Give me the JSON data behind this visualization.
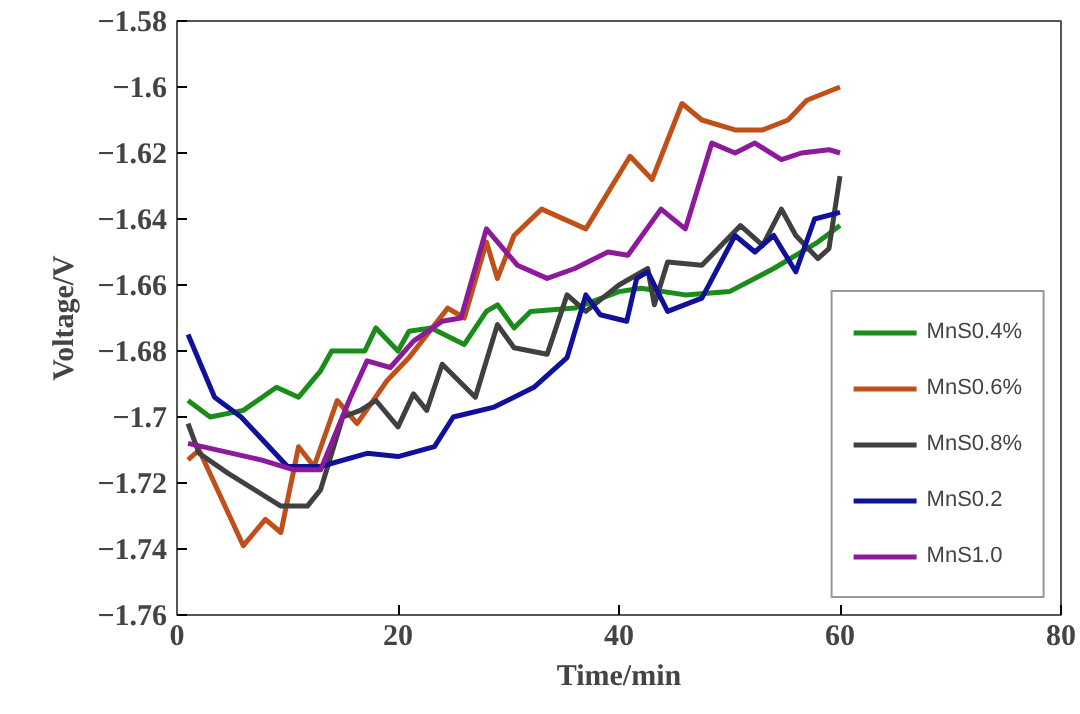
{
  "chart_data": {
    "type": "line",
    "xlabel": "Time/min",
    "ylabel": "Voltage/V",
    "xlim": [
      0,
      80
    ],
    "xticks": [
      0,
      20,
      40,
      60,
      80
    ],
    "ylim": [
      -1.76,
      -1.58
    ],
    "yticks": [
      {
        "value": -1.76,
        "label": "−1.76"
      },
      {
        "value": -1.74,
        "label": "−1.74"
      },
      {
        "value": -1.72,
        "label": "−1.72"
      },
      {
        "value": -1.7,
        "label": "−1.7"
      },
      {
        "value": -1.68,
        "label": "−1.68"
      },
      {
        "value": -1.66,
        "label": "−1.66"
      },
      {
        "value": -1.64,
        "label": "−1.64"
      },
      {
        "value": -1.62,
        "label": "−1.62"
      },
      {
        "value": -1.6,
        "label": "−1.6"
      },
      {
        "value": -1.58,
        "label": "−1.58"
      }
    ],
    "grid": false,
    "legend": "bottom right",
    "marker": "none",
    "line_style": "solid",
    "series": [
      {
        "name": "MnS0.4%",
        "color": "#1a8c1a",
        "x": [
          1,
          3,
          6,
          9,
          11,
          13,
          14,
          17,
          18,
          20,
          21,
          23,
          26,
          28,
          29,
          30.5,
          32,
          36,
          40,
          42,
          46,
          50,
          54,
          58,
          60
        ],
        "values": [
          -1.695,
          -1.7,
          -1.698,
          -1.691,
          -1.694,
          -1.686,
          -1.68,
          -1.68,
          -1.673,
          -1.68,
          -1.674,
          -1.673,
          -1.678,
          -1.668,
          -1.666,
          -1.673,
          -1.668,
          -1.667,
          -1.662,
          -1.661,
          -1.663,
          -1.662,
          -1.655,
          -1.647,
          -1.642
        ]
      },
      {
        "name": "MnS0.6%",
        "color": "#c0501a",
        "x": [
          1,
          2,
          6,
          8,
          9.4,
          11,
          12.4,
          14.5,
          16.3,
          19,
          21,
          24.5,
          26,
          28,
          29,
          30.5,
          33,
          37,
          41,
          43,
          45.7,
          47.5,
          50.5,
          53,
          55.3,
          57,
          60
        ],
        "values": [
          -1.713,
          -1.71,
          -1.739,
          -1.731,
          -1.735,
          -1.709,
          -1.715,
          -1.695,
          -1.702,
          -1.689,
          -1.682,
          -1.667,
          -1.67,
          -1.647,
          -1.658,
          -1.645,
          -1.637,
          -1.643,
          -1.621,
          -1.628,
          -1.605,
          -1.61,
          -1.613,
          -1.613,
          -1.61,
          -1.604,
          -1.6
        ]
      },
      {
        "name": "MnS0.8%",
        "color": "#404040",
        "x": [
          1,
          2,
          4.6,
          9.4,
          11.8,
          13,
          15,
          16.6,
          18,
          20,
          21.4,
          22.6,
          24,
          27,
          29,
          30.5,
          33.5,
          35.3,
          37,
          40,
          42.6,
          43.2,
          44.4,
          47.5,
          51,
          53,
          54.7,
          56,
          58,
          59,
          60
        ],
        "values": [
          -1.702,
          -1.711,
          -1.717,
          -1.727,
          -1.727,
          -1.722,
          -1.7,
          -1.698,
          -1.695,
          -1.703,
          -1.693,
          -1.698,
          -1.684,
          -1.694,
          -1.672,
          -1.679,
          -1.681,
          -1.663,
          -1.668,
          -1.66,
          -1.655,
          -1.666,
          -1.653,
          -1.654,
          -1.642,
          -1.648,
          -1.637,
          -1.645,
          -1.652,
          -1.649,
          -1.627
        ]
      },
      {
        "name": "MnS0.2",
        "color": "#10109a",
        "x": [
          1,
          3.4,
          5.8,
          10,
          13,
          17.2,
          20,
          23.3,
          25,
          28.7,
          32.3,
          35.3,
          37,
          38.3,
          40.7,
          41.6,
          42.6,
          44.4,
          47.5,
          50.5,
          52.3,
          54,
          56,
          57.7,
          60
        ],
        "values": [
          -1.675,
          -1.694,
          -1.7,
          -1.715,
          -1.715,
          -1.711,
          -1.712,
          -1.709,
          -1.7,
          -1.697,
          -1.691,
          -1.682,
          -1.663,
          -1.669,
          -1.671,
          -1.658,
          -1.656,
          -1.668,
          -1.664,
          -1.645,
          -1.65,
          -1.645,
          -1.656,
          -1.64,
          -1.638
        ]
      },
      {
        "name": "MnS1.0",
        "color": "#8c1a9a",
        "x": [
          1,
          7.6,
          10.6,
          13,
          15.7,
          17.2,
          19.3,
          21.4,
          24,
          25.7,
          28,
          30.8,
          33.5,
          36,
          39,
          40.8,
          43.8,
          46,
          48.4,
          50.5,
          52.3,
          54.7,
          56.5,
          59,
          60
        ],
        "values": [
          -1.708,
          -1.713,
          -1.716,
          -1.716,
          -1.694,
          -1.683,
          -1.685,
          -1.677,
          -1.671,
          -1.67,
          -1.643,
          -1.654,
          -1.658,
          -1.655,
          -1.65,
          -1.651,
          -1.637,
          -1.643,
          -1.617,
          -1.62,
          -1.617,
          -1.622,
          -1.62,
          -1.619,
          -1.62
        ]
      }
    ]
  }
}
